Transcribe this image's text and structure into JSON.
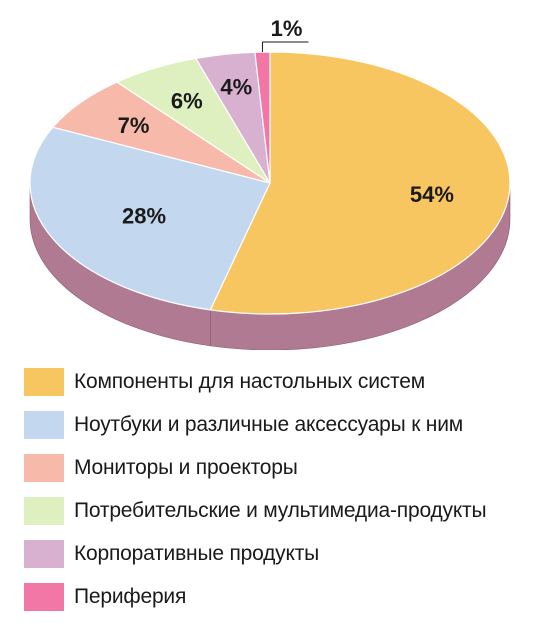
{
  "chart_data": {
    "type": "pie",
    "title": "",
    "slices": [
      {
        "label": "Компоненты для настольных систем",
        "value": 54,
        "value_label": "54%",
        "color": "#f7c660",
        "side": "#b88d3a"
      },
      {
        "label": "Ноутбуки и различные аксессуары к ним",
        "value": 28,
        "value_label": "28%",
        "color": "#c3d8ef",
        "side": "#8fa1b8"
      },
      {
        "label": "Мониторы и проекторы",
        "value": 7,
        "value_label": "7%",
        "color": "#f7b9a9",
        "side": "#b98a7e"
      },
      {
        "label": "Потребительские и мультимедиа-продукты",
        "value": 6,
        "value_label": "6%",
        "color": "#def0bf",
        "side": "#a4b28c"
      },
      {
        "label": "Корпоративные продукты",
        "value": 4,
        "value_label": "4%",
        "color": "#d8b1d1",
        "side": "#a0839b"
      },
      {
        "label": "Периферия",
        "value": 1,
        "value_label": "1%",
        "color": "#f277a6",
        "side": "#b3587b"
      }
    ],
    "style": "3d",
    "legend_position": "bottom",
    "side_color": "#b07a92"
  }
}
